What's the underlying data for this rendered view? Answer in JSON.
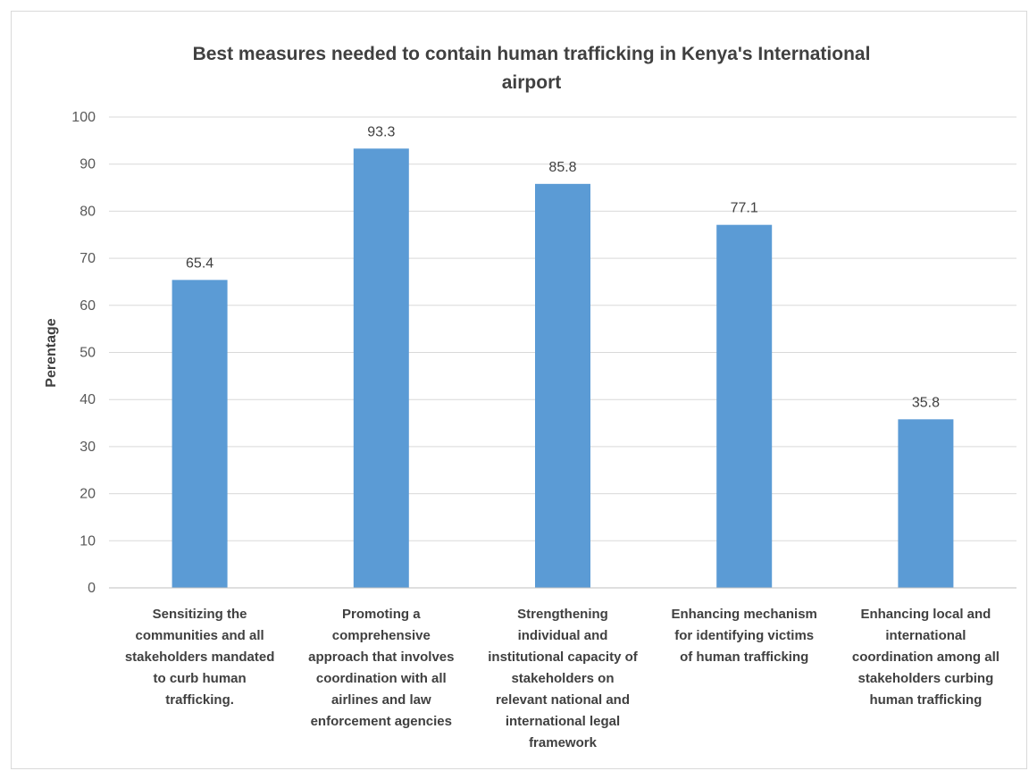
{
  "chart_data": {
    "type": "bar",
    "title_lines": [
      "Best measures needed to contain human trafficking in Kenya's International",
      "airport"
    ],
    "ylabel": "Perentage",
    "xlabel": "",
    "ylim": [
      0,
      100
    ],
    "yticks": [
      0,
      10,
      20,
      30,
      40,
      50,
      60,
      70,
      80,
      90,
      100
    ],
    "grid": true,
    "legend": "none",
    "bar_color": "#5b9bd5",
    "categories": [
      [
        "Sensitizing the",
        "communities and all",
        "stakeholders mandated",
        "to curb human",
        "trafficking."
      ],
      [
        "Promoting a",
        "comprehensive",
        "approach that involves",
        "coordination with all",
        "airlines and law",
        "enforcement agencies"
      ],
      [
        "Strengthening",
        "individual and",
        "institutional capacity of",
        "stakeholders on",
        "relevant national and",
        "international legal",
        "framework"
      ],
      [
        "Enhancing mechanism",
        "for identifying victims",
        "of human trafficking"
      ],
      [
        "Enhancing local and",
        "international",
        "coordination among all",
        "stakeholders curbing",
        "human trafficking"
      ]
    ],
    "values": [
      65.4,
      93.3,
      85.8,
      77.1,
      35.8
    ],
    "value_labels": [
      "65.4",
      "93.3",
      "85.8",
      "77.1",
      "35.8"
    ]
  }
}
